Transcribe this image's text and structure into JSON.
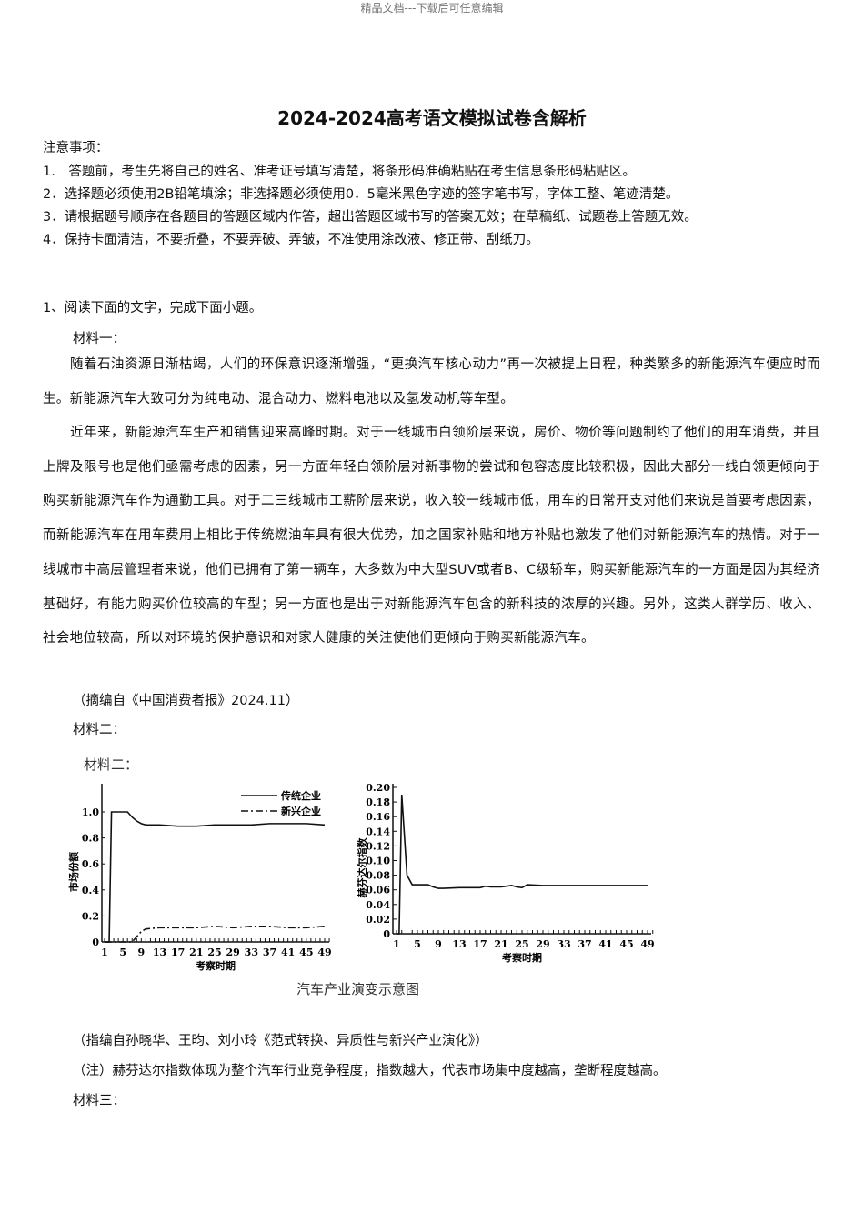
{
  "watermark": "精品文档---下载后可任意编辑",
  "title": "2024-2024高考语文模拟试卷含解析",
  "notice": {
    "heading": "注意事项：",
    "items": [
      "1.　答题前，考生先将自己的姓名、准考证号填写清楚，将条形码准确粘贴在考生信息条形码粘贴区。",
      "2．选择题必须使用2B铅笔填涂；非选择题必须使用0．5毫米黑色字迹的签字笔书写，字体工整、笔迹清楚。",
      "3．请根据题号顺序在各题目的答题区域内作答，超出答题区域书写的答案无效；在草稿纸、试题卷上答题无效。",
      "4．保持卡面清洁，不要折叠，不要弄破、弄皱，不准使用涂改液、修正带、刮纸刀。"
    ]
  },
  "question": {
    "stem": "1、阅读下面的文字，完成下面小题。",
    "material1_label": "材料一：",
    "p1": "　　随着石油资源日渐枯竭，人们的环保意识逐渐增强，“更换汽车核心动力”再一次被提上日程，种类繁多的新能源汽车便应时而生。新能源汽车大致可分为纯电动、混合动力、燃料电池以及氢发动机等车型。",
    "p2": "　　近年来，新能源汽车生产和销售迎来高峰时期。对于一线城市白领阶层来说，房价、物价等问题制约了他们的用车消费，并且上牌及限号也是他们亟需考虑的因素，另一方面年轻白领阶层对新事物的尝试和包容态度比较积极，因此大部分一线白领更倾向于购买新能源汽车作为通勤工具。对于二三线城市工薪阶层来说，收入较一线城市低，用车的日常开支对他们来说是首要考虑因素，而新能源汽车在用车费用上相比于传统燃油车具有很大优势，加之国家补贴和地方补贴也激发了他们对新能源汽车的热情。对于一线城市中高层管理者来说，他们已拥有了第一辆车，大多数为中大型SUV或者B、C级轿车，购买新能源汽车的一方面是因为其经济基础好，有能力购买价位较高的车型；另一方面也是出于对新能源汽车包含的新科技的浓厚的兴趣。另外，这类人群学历、收入、社会地位较高，所以对环境的保护意识和对家人健康的关注使他们更倾向于购买新能源汽车。",
    "source1": "（摘编自《中国消费者报》2024.11）",
    "material2_label": "材料二：",
    "figure": {
      "inner_label": "材料二：",
      "caption": "汽车产业演变示意图"
    },
    "source2": "（指编自孙晓华、王昀、刘小玲《范式转换、异质性与新兴产业演化》）",
    "note": "（注）赫芬达尔指数体现为整个汽车行业竞争程度，指数越大，代表市场集中度越高，垄断程度越高。",
    "material3_label": "材料三："
  },
  "chart_data": [
    {
      "type": "line",
      "ylabel": "市场份额",
      "xlabel": "考察时期",
      "ylim": [
        0,
        1.1
      ],
      "yticks": [
        "0",
        "0.2",
        "0.4",
        "0.6",
        "0.8",
        "1.0"
      ],
      "xticks": [
        "1",
        "5",
        "9",
        "13",
        "17",
        "21",
        "25",
        "29",
        "33",
        "37",
        "41",
        "45",
        "49"
      ],
      "legend": "top-right",
      "series": [
        {
          "name": "传统企业",
          "style": "solid",
          "x": [
            1,
            2,
            2.5,
            3,
            4,
            5,
            6,
            7,
            8,
            9,
            10,
            13,
            17,
            21,
            25,
            29,
            33,
            37,
            41,
            45,
            49
          ],
          "y": [
            0,
            0,
            1.0,
            1.0,
            1.0,
            1.0,
            1.0,
            0.96,
            0.93,
            0.91,
            0.9,
            0.9,
            0.89,
            0.89,
            0.9,
            0.9,
            0.9,
            0.91,
            0.91,
            0.91,
            0.9
          ]
        },
        {
          "name": "新兴企业",
          "style": "dash-dot",
          "x": [
            1,
            7,
            8,
            9,
            10,
            13,
            17,
            21,
            25,
            29,
            33,
            37,
            41,
            45,
            49
          ],
          "y": [
            0,
            0,
            0.04,
            0.08,
            0.1,
            0.11,
            0.11,
            0.11,
            0.12,
            0.11,
            0.12,
            0.12,
            0.11,
            0.11,
            0.12
          ]
        }
      ]
    },
    {
      "type": "line",
      "ylabel": "赫芬达尔指数",
      "xlabel": "考察时期",
      "ylim": [
        0,
        0.2
      ],
      "yticks": [
        "0",
        "0.02",
        "0.04",
        "0.06",
        "0.08",
        "0.10",
        "0.12",
        "0.14",
        "0.16",
        "0.18",
        "0.20"
      ],
      "xticks": [
        "1",
        "5",
        "9",
        "13",
        "17",
        "21",
        "25",
        "29",
        "33",
        "37",
        "41",
        "45",
        "49"
      ],
      "series": [
        {
          "style": "solid",
          "x": [
            1,
            1.5,
            2,
            3,
            4,
            5,
            6,
            7,
            8,
            9,
            10,
            13,
            17,
            18,
            19,
            21,
            22,
            23,
            24,
            25,
            26,
            29,
            33,
            37,
            41,
            45,
            49
          ],
          "y": [
            0,
            0,
            0.19,
            0.08,
            0.067,
            0.067,
            0.067,
            0.067,
            0.064,
            0.062,
            0.062,
            0.063,
            0.063,
            0.065,
            0.064,
            0.064,
            0.065,
            0.066,
            0.064,
            0.063,
            0.067,
            0.066,
            0.066,
            0.066,
            0.066,
            0.066,
            0.066
          ]
        }
      ]
    }
  ]
}
